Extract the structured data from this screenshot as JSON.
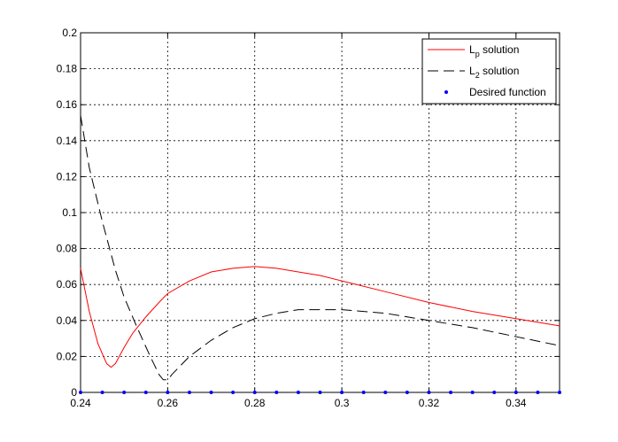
{
  "chart_data": {
    "type": "line",
    "xlim": [
      0.24,
      0.35
    ],
    "xticks": [
      0.24,
      0.26,
      0.28,
      0.3,
      0.32,
      0.34
    ],
    "ylim": [
      0,
      0.2
    ],
    "yticks": [
      0,
      0.02,
      0.04,
      0.06,
      0.08,
      0.1,
      0.12,
      0.14,
      0.16,
      0.18,
      0.2
    ],
    "grid": true,
    "legend": "northeast",
    "series": [
      {
        "name": "Lp solution",
        "color": "#ff0000",
        "style": "solid",
        "x": [
          0.24,
          0.242,
          0.244,
          0.246,
          0.247,
          0.248,
          0.25,
          0.252,
          0.255,
          0.258,
          0.26,
          0.265,
          0.27,
          0.275,
          0.28,
          0.285,
          0.29,
          0.295,
          0.3,
          0.31,
          0.32,
          0.33,
          0.34,
          0.35
        ],
        "values": [
          0.069,
          0.045,
          0.027,
          0.016,
          0.014,
          0.016,
          0.025,
          0.033,
          0.042,
          0.05,
          0.055,
          0.062,
          0.067,
          0.069,
          0.07,
          0.069,
          0.067,
          0.065,
          0.062,
          0.056,
          0.05,
          0.045,
          0.041,
          0.037
        ]
      },
      {
        "name": "L2 solution",
        "color": "#000000",
        "style": "dashed",
        "x": [
          0.24,
          0.242,
          0.245,
          0.248,
          0.25,
          0.253,
          0.256,
          0.258,
          0.259,
          0.26,
          0.261,
          0.265,
          0.27,
          0.275,
          0.28,
          0.285,
          0.29,
          0.295,
          0.3,
          0.305,
          0.31,
          0.315,
          0.32,
          0.33,
          0.34,
          0.35
        ],
        "values": [
          0.154,
          0.125,
          0.095,
          0.068,
          0.053,
          0.036,
          0.02,
          0.01,
          0.007,
          0.007,
          0.01,
          0.02,
          0.029,
          0.036,
          0.041,
          0.044,
          0.046,
          0.046,
          0.046,
          0.045,
          0.044,
          0.042,
          0.04,
          0.036,
          0.031,
          0.026
        ]
      },
      {
        "name": "Desired function",
        "color": "#0000ff",
        "style": "dots",
        "x": [
          0.24,
          0.245,
          0.25,
          0.255,
          0.26,
          0.265,
          0.27,
          0.275,
          0.28,
          0.285,
          0.29,
          0.295,
          0.3,
          0.305,
          0.31,
          0.315,
          0.32,
          0.325,
          0.33,
          0.335,
          0.34,
          0.345,
          0.35
        ],
        "values": [
          0,
          0,
          0,
          0,
          0,
          0,
          0,
          0,
          0,
          0,
          0,
          0,
          0,
          0,
          0,
          0,
          0,
          0,
          0,
          0,
          0,
          0,
          0
        ]
      }
    ]
  }
}
